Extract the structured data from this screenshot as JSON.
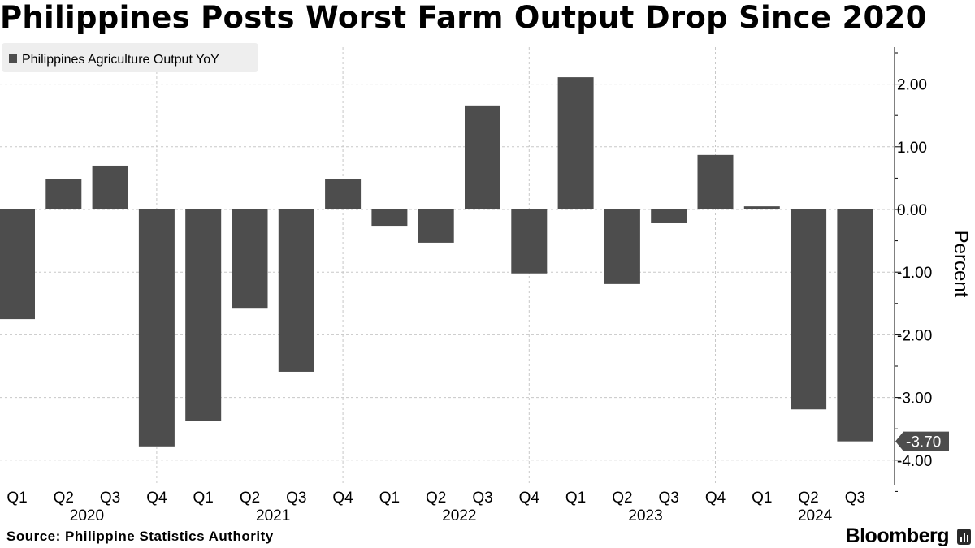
{
  "title": "Philippines Posts Worst Farm Output Drop Since 2020",
  "source": "Source:  Philippine Statistics Authority",
  "brand": "Bloomberg",
  "colors": {
    "bar": "#4d4d4d",
    "grid": "#c8c8c8",
    "legend_bg": "#eeeeee",
    "axis": "#000000"
  },
  "chart_data": {
    "type": "bar",
    "title": "Philippines Posts Worst Farm Output Drop Since 2020",
    "ylabel": "Percent",
    "xlabel": "",
    "ylim": [
      -4.4,
      2.7
    ],
    "yticks": [
      2.0,
      1.0,
      0.0,
      -1.0,
      -2.0,
      -3.0,
      -4.0
    ],
    "ytick_labels": [
      "2.00",
      "1.00",
      "0.00",
      "-1.00",
      "-2.00",
      "-3.00",
      "-4.00"
    ],
    "grid": true,
    "legend": [
      "Philippines Agriculture Output YoY"
    ],
    "legend_position": "top-left",
    "categories": [
      "Q1",
      "Q2",
      "Q3",
      "Q4",
      "Q1",
      "Q2",
      "Q3",
      "Q4",
      "Q1",
      "Q2",
      "Q3",
      "Q4",
      "Q1",
      "Q2",
      "Q3",
      "Q4",
      "Q1",
      "Q2",
      "Q3"
    ],
    "year_groups": [
      {
        "label": "2020",
        "start": 0,
        "end": 3
      },
      {
        "label": "2021",
        "start": 4,
        "end": 7
      },
      {
        "label": "2022",
        "start": 8,
        "end": 11
      },
      {
        "label": "2023",
        "start": 12,
        "end": 15
      },
      {
        "label": "2024",
        "start": 16,
        "end": 18
      }
    ],
    "series": [
      {
        "name": "Philippines Agriculture Output YoY",
        "values": [
          -1.75,
          0.48,
          0.7,
          -3.78,
          -3.38,
          -1.57,
          -2.59,
          0.48,
          -0.26,
          -0.53,
          1.66,
          -1.02,
          2.11,
          -1.19,
          -0.22,
          0.87,
          0.05,
          -3.19,
          -3.7
        ]
      }
    ],
    "last_value_label": "-3.70"
  }
}
